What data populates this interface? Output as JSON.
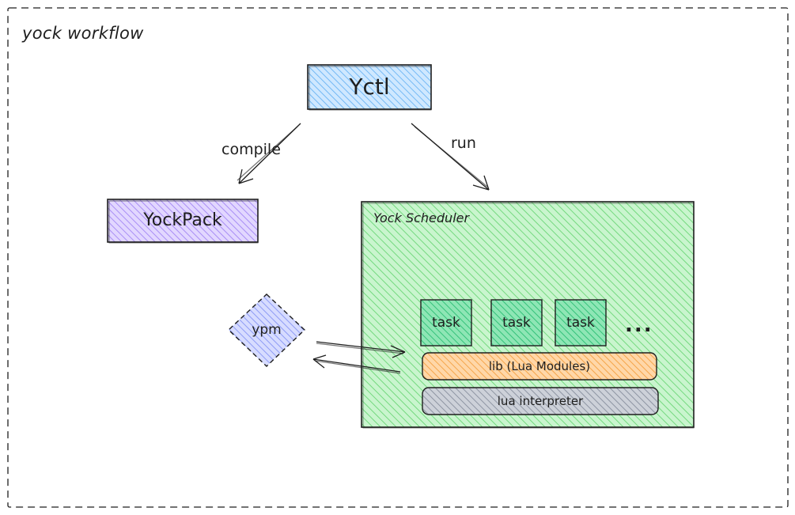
{
  "frame": {
    "title": "yock workflow"
  },
  "nodes": {
    "yctl": "Yctl",
    "yockpack": "YockPack",
    "scheduler": "Yock Scheduler",
    "ypm": "ypm",
    "tasks": [
      "task",
      "task",
      "task"
    ],
    "ellipsis": "...",
    "lib": "lib (Lua Modules)",
    "interpreter": "lua interpreter"
  },
  "edges": {
    "compile": "compile",
    "run": "run"
  },
  "colors": {
    "stroke": "#1e1e1e",
    "yctl_fill": "#a5d8ff",
    "yockpack_fill": "#d0bfff",
    "scheduler_fill": "#b2f2bb",
    "scheduler_hatch": "#8ce99a",
    "task_fill": "#63e6be",
    "ypm_fill": "#a5b4fc",
    "lib_fill": "#ffc078",
    "interpreter_fill": "#adb5bd"
  }
}
